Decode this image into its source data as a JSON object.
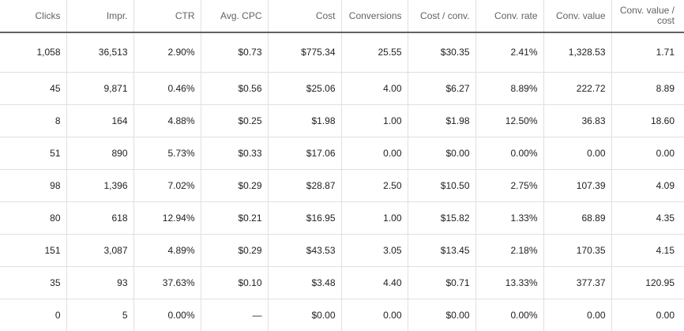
{
  "table": {
    "columns": [
      "Clicks",
      "Impr.",
      "CTR",
      "Avg. CPC",
      "Cost",
      "Conversions",
      "Cost / conv.",
      "Conv. rate",
      "Conv. value",
      "Conv. value / cost"
    ],
    "rows": [
      [
        "1,058",
        "36,513",
        "2.90%",
        "$0.73",
        "$775.34",
        "25.55",
        "$30.35",
        "2.41%",
        "1,328.53",
        "1.71"
      ],
      [
        "45",
        "9,871",
        "0.46%",
        "$0.56",
        "$25.06",
        "4.00",
        "$6.27",
        "8.89%",
        "222.72",
        "8.89"
      ],
      [
        "8",
        "164",
        "4.88%",
        "$0.25",
        "$1.98",
        "1.00",
        "$1.98",
        "12.50%",
        "36.83",
        "18.60"
      ],
      [
        "51",
        "890",
        "5.73%",
        "$0.33",
        "$17.06",
        "0.00",
        "$0.00",
        "0.00%",
        "0.00",
        "0.00"
      ],
      [
        "98",
        "1,396",
        "7.02%",
        "$0.29",
        "$28.87",
        "2.50",
        "$10.50",
        "2.75%",
        "107.39",
        "4.09"
      ],
      [
        "80",
        "618",
        "12.94%",
        "$0.21",
        "$16.95",
        "1.00",
        "$15.82",
        "1.33%",
        "68.89",
        "4.35"
      ],
      [
        "151",
        "3,087",
        "4.89%",
        "$0.29",
        "$43.53",
        "3.05",
        "$13.45",
        "2.18%",
        "170.35",
        "4.15"
      ],
      [
        "35",
        "93",
        "37.63%",
        "$0.10",
        "$3.48",
        "4.40",
        "$0.71",
        "13.33%",
        "377.37",
        "120.95"
      ],
      [
        "0",
        "5",
        "0.00%",
        "—",
        "$0.00",
        "0.00",
        "$0.00",
        "0.00%",
        "0.00",
        "0.00"
      ]
    ]
  }
}
